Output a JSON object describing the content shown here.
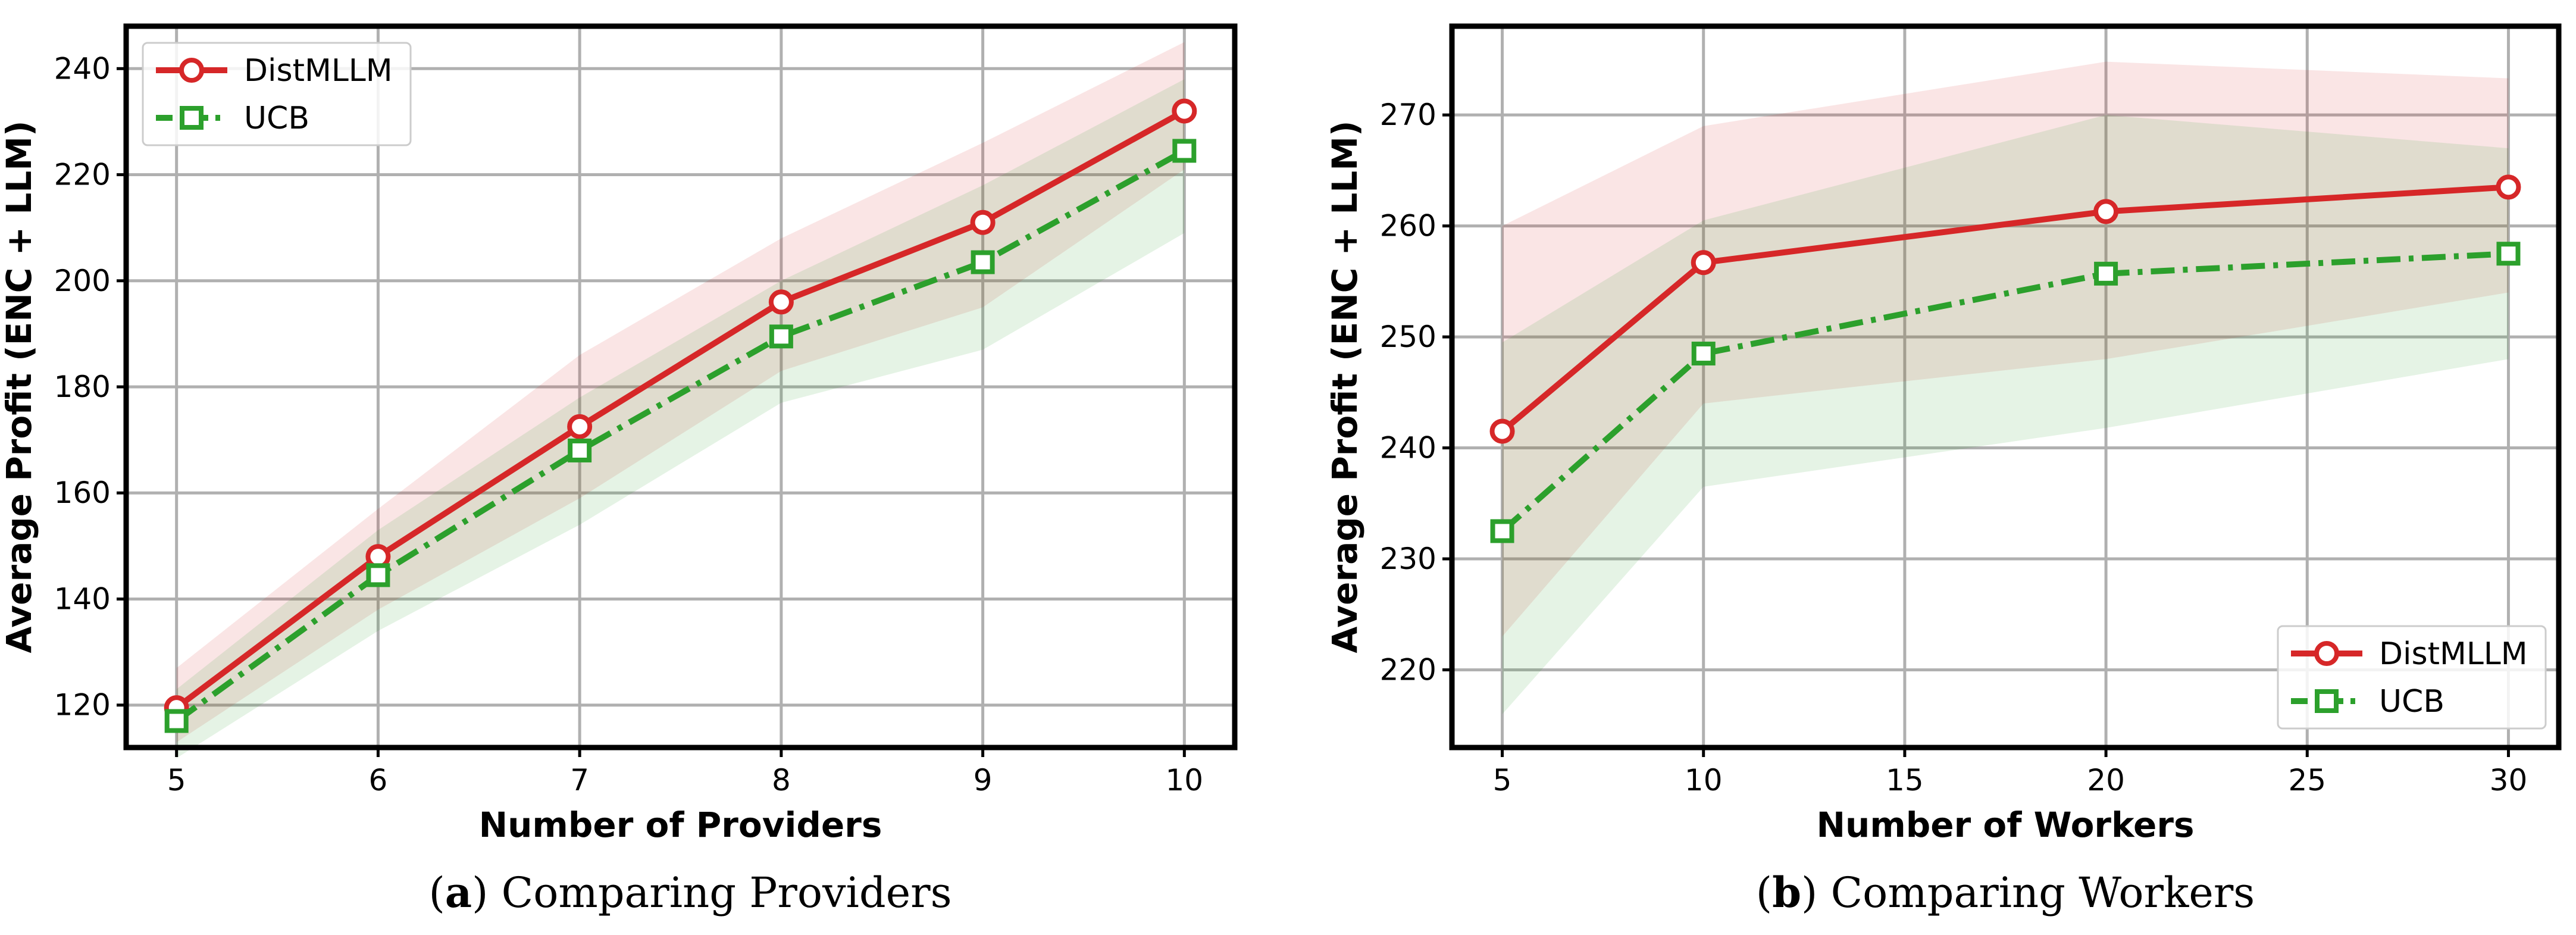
{
  "colors": {
    "distmllm": "#d62728",
    "ucb": "#2ca02c",
    "grid": "#b0b0b0",
    "frame": "#000000"
  },
  "chart_data": [
    {
      "type": "line",
      "caption_letter": "a",
      "caption_text": "Comparing Providers",
      "xlabel": "Number of Providers",
      "ylabel": "Average Profit (ENC + LLM)",
      "x": [
        5,
        6,
        7,
        8,
        9,
        10
      ],
      "xlim": [
        4.75,
        10.25
      ],
      "ylim": [
        112,
        248
      ],
      "xticks": [
        5,
        6,
        7,
        8,
        9,
        10
      ],
      "yticks": [
        120,
        140,
        160,
        180,
        200,
        220,
        240
      ],
      "grid": true,
      "legend_position": "top-left",
      "series": [
        {
          "name": "DistMLLM",
          "marker": "circle",
          "line_style": "solid",
          "color": "#d62728",
          "values": [
            119.5,
            148,
            172.5,
            196,
            211,
            232
          ],
          "band_lower": [
            113,
            138,
            159,
            183,
            195,
            221
          ],
          "band_upper": [
            127,
            157,
            186,
            208,
            226,
            245
          ]
        },
        {
          "name": "UCB",
          "marker": "square",
          "line_style": "dashdot",
          "color": "#2ca02c",
          "values": [
            117,
            144.5,
            168,
            189.5,
            203.5,
            224.5
          ],
          "band_lower": [
            110,
            134,
            154,
            177,
            187,
            209
          ],
          "band_upper": [
            123,
            153,
            178,
            200,
            218,
            238
          ]
        }
      ]
    },
    {
      "type": "line",
      "caption_letter": "b",
      "caption_text": "Comparing Workers",
      "xlabel": "Number of Workers",
      "ylabel": "Average Profit (ENC + LLM)",
      "x": [
        5,
        10,
        20,
        30
      ],
      "xlim": [
        3.75,
        31.25
      ],
      "ylim": [
        213,
        278
      ],
      "xticks": [
        5,
        10,
        15,
        20,
        25,
        30
      ],
      "yticks": [
        220,
        230,
        240,
        250,
        260,
        270
      ],
      "grid": true,
      "legend_position": "bottom-right",
      "series": [
        {
          "name": "DistMLLM",
          "marker": "circle",
          "line_style": "solid",
          "color": "#d62728",
          "values": [
            241.5,
            256.7,
            261.3,
            263.5
          ],
          "band_lower": [
            223,
            244,
            248,
            254
          ],
          "band_upper": [
            260,
            269,
            274.8,
            273.3
          ]
        },
        {
          "name": "UCB",
          "marker": "square",
          "line_style": "dashdot",
          "color": "#2ca02c",
          "values": [
            232.5,
            248.5,
            255.7,
            257.5
          ],
          "band_lower": [
            216,
            236.5,
            241.8,
            248
          ],
          "band_upper": [
            249.5,
            260.5,
            270,
            267
          ]
        }
      ]
    }
  ]
}
